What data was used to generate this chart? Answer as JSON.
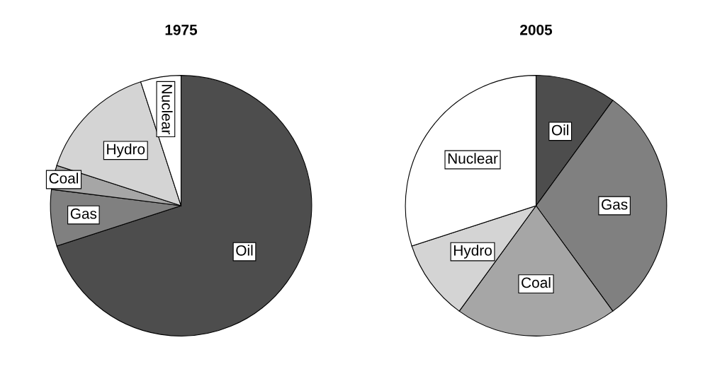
{
  "chart_data": [
    {
      "type": "pie",
      "title": "1975",
      "categories": [
        "Oil",
        "Gas",
        "Coal",
        "Hydro",
        "Nuclear"
      ],
      "values": [
        70,
        7,
        3,
        15,
        5
      ],
      "colors": [
        "#4d4d4d",
        "#808080",
        "#a6a6a6",
        "#d4d4d4",
        "#ffffff"
      ]
    },
    {
      "type": "pie",
      "title": "2005",
      "categories": [
        "Oil",
        "Gas",
        "Coal",
        "Hydro",
        "Nuclear"
      ],
      "values": [
        10,
        30,
        20,
        10,
        30
      ],
      "colors": [
        "#4d4d4d",
        "#808080",
        "#a6a6a6",
        "#d4d4d4",
        "#ffffff"
      ]
    }
  ]
}
